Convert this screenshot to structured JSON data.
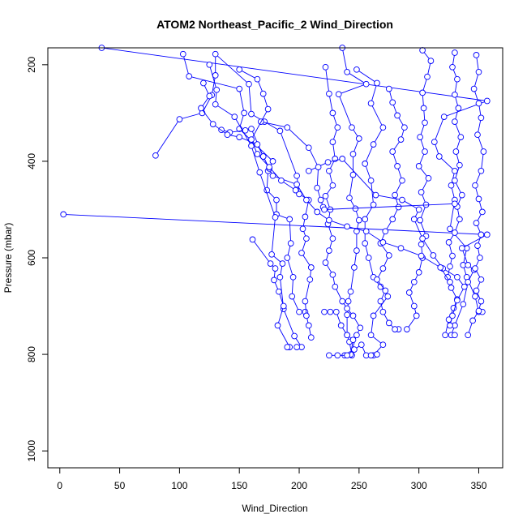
{
  "chart_data": {
    "type": "line",
    "title": "ATOM2 Northeast_Pacific_2 Wind_Direction",
    "xlabel": "Wind_Direction",
    "ylabel": "Pressure (mbar)",
    "xlim": [
      -10,
      370
    ],
    "ylim": [
      1035,
      165
    ],
    "y_reversed": true,
    "xticks": [
      0,
      50,
      100,
      150,
      200,
      250,
      300,
      350
    ],
    "yticks": [
      200,
      400,
      600,
      800,
      1000
    ],
    "xtick_labels": [
      "0",
      "50",
      "100",
      "150",
      "200",
      "250",
      "300",
      "350"
    ],
    "ytick_labels": [
      "200",
      "400",
      "600",
      "800",
      "1000"
    ],
    "grid": false,
    "legend": "none",
    "line_color": "#0000ff",
    "marker": "open-circle",
    "series": [
      {
        "points": [
          [
            35,
            165
          ],
          [
            357,
            275
          ],
          [
            321,
            308
          ],
          [
            313,
            360
          ],
          [
            317,
            390
          ],
          [
            330,
            420
          ],
          [
            327,
            450
          ],
          [
            330,
            480
          ],
          [
            326,
            540
          ],
          [
            340,
            580
          ],
          [
            337,
            615
          ],
          [
            340,
            640
          ],
          [
            347,
            680
          ],
          [
            350,
            712
          ],
          [
            353,
            712
          ]
        ]
      },
      {
        "points": [
          [
            103,
            178
          ],
          [
            108,
            224
          ],
          [
            150,
            250
          ],
          [
            154,
            300
          ],
          [
            150,
            333
          ],
          [
            178,
            400
          ],
          [
            174,
            420
          ],
          [
            173,
            460
          ],
          [
            181,
            480
          ],
          [
            181,
            510
          ],
          [
            192,
            520
          ],
          [
            193,
            570
          ],
          [
            190,
            600
          ],
          [
            195,
            640
          ],
          [
            194,
            680
          ],
          [
            200,
            712
          ],
          [
            205,
            712
          ]
        ]
      },
      {
        "points": [
          [
            125,
            200
          ],
          [
            131,
            252
          ],
          [
            130,
            282
          ],
          [
            146,
            308
          ],
          [
            160,
            368
          ],
          [
            167,
            423
          ],
          [
            180,
            516
          ],
          [
            177,
            593
          ],
          [
            186,
            612
          ],
          [
            184,
            640
          ],
          [
            187,
            706
          ],
          [
            196,
            762
          ],
          [
            202,
            785
          ],
          [
            198,
            785
          ]
        ]
      },
      {
        "points": [
          [
            3,
            510
          ],
          [
            357,
            552
          ],
          [
            336,
            580
          ],
          [
            341,
            615
          ],
          [
            346,
            625
          ],
          [
            341,
            650
          ],
          [
            337,
            696
          ],
          [
            330,
            740
          ],
          [
            327,
            760
          ],
          [
            330,
            760
          ]
        ]
      },
      {
        "points": [
          [
            161,
            562
          ],
          [
            176,
            612
          ],
          [
            180,
            622
          ],
          [
            179,
            646
          ],
          [
            183,
            670
          ],
          [
            187,
            700
          ],
          [
            182,
            740
          ],
          [
            192,
            785
          ],
          [
            190,
            785
          ]
        ]
      },
      {
        "points": [
          [
            236,
            165
          ],
          [
            240,
            215
          ],
          [
            256,
            240
          ],
          [
            233,
            261
          ],
          [
            244,
            330
          ],
          [
            250,
            353
          ],
          [
            245,
            385
          ],
          [
            245,
            428
          ],
          [
            242,
            476
          ],
          [
            247,
            498
          ],
          [
            250,
            522
          ],
          [
            248,
            545
          ],
          [
            248,
            585
          ],
          [
            246,
            620
          ],
          [
            243,
            670
          ],
          [
            241,
            690
          ],
          [
            240,
            718
          ],
          [
            240,
            760
          ],
          [
            242,
            774
          ],
          [
            244,
            802
          ],
          [
            238,
            802
          ]
        ]
      },
      {
        "points": [
          [
            80,
            388
          ],
          [
            100,
            313
          ],
          [
            119,
            300
          ],
          [
            127,
            263
          ],
          [
            130,
            222
          ],
          [
            130,
            178
          ],
          [
            158,
            240
          ],
          [
            160,
            302
          ],
          [
            171,
            318
          ],
          [
            184,
            337
          ],
          [
            198,
            430
          ],
          [
            200,
            468
          ],
          [
            208,
            480
          ],
          [
            205,
            515
          ],
          [
            203,
            540
          ],
          [
            206,
            560
          ],
          [
            202,
            590
          ],
          [
            210,
            620
          ],
          [
            209,
            645
          ],
          [
            205,
            690
          ],
          [
            206,
            720
          ],
          [
            208,
            740
          ],
          [
            210,
            765
          ]
        ]
      },
      {
        "points": [
          [
            262,
            802
          ],
          [
            270,
            780
          ],
          [
            260,
            760
          ],
          [
            262,
            720
          ],
          [
            274,
            680
          ],
          [
            268,
            660
          ],
          [
            262,
            640
          ],
          [
            258,
            600
          ],
          [
            255,
            570
          ],
          [
            255,
            520
          ],
          [
            262,
            490
          ],
          [
            260,
            440
          ],
          [
            255,
            405
          ],
          [
            262,
            365
          ],
          [
            270,
            330
          ],
          [
            260,
            280
          ],
          [
            265,
            238
          ],
          [
            248,
            210
          ]
        ]
      },
      {
        "points": [
          [
            290,
            748
          ],
          [
            298,
            720
          ],
          [
            296,
            700
          ],
          [
            292,
            672
          ],
          [
            296,
            650
          ],
          [
            300,
            630
          ],
          [
            303,
            600
          ],
          [
            302,
            572
          ],
          [
            306,
            555
          ],
          [
            301,
            522
          ],
          [
            306,
            490
          ],
          [
            302,
            464
          ],
          [
            308,
            435
          ],
          [
            300,
            410
          ],
          [
            305,
            380
          ],
          [
            301,
            350
          ],
          [
            305,
            320
          ],
          [
            304,
            290
          ],
          [
            303,
            258
          ],
          [
            307,
            225
          ],
          [
            310,
            192
          ],
          [
            303,
            170
          ]
        ]
      },
      {
        "points": [
          [
            322,
            760
          ],
          [
            325,
            728
          ],
          [
            329,
            704
          ],
          [
            332,
            686
          ],
          [
            327,
            662
          ],
          [
            324,
            640
          ],
          [
            326,
            618
          ],
          [
            328,
            596
          ],
          [
            325,
            568
          ],
          [
            330,
            548
          ],
          [
            334,
            520
          ],
          [
            332,
            494
          ],
          [
            336,
            470
          ],
          [
            330,
            440
          ],
          [
            334,
            408
          ],
          [
            331,
            380
          ],
          [
            335,
            350
          ],
          [
            330,
            318
          ],
          [
            333,
            290
          ],
          [
            330,
            262
          ],
          [
            332,
            230
          ],
          [
            328,
            205
          ],
          [
            330,
            175
          ]
        ]
      },
      {
        "points": [
          [
            341,
            760
          ],
          [
            345,
            730
          ],
          [
            350,
            710
          ],
          [
            352,
            690
          ],
          [
            348,
            668
          ],
          [
            352,
            645
          ],
          [
            347,
            622
          ],
          [
            351,
            600
          ],
          [
            349,
            575
          ],
          [
            352,
            552
          ],
          [
            348,
            528
          ],
          [
            353,
            505
          ],
          [
            350,
            478
          ],
          [
            347,
            450
          ],
          [
            352,
            420
          ],
          [
            354,
            380
          ],
          [
            349,
            345
          ],
          [
            352,
            310
          ],
          [
            350,
            280
          ],
          [
            346,
            250
          ],
          [
            350,
            215
          ],
          [
            348,
            180
          ]
        ]
      },
      {
        "points": [
          [
            221,
            712
          ],
          [
            226,
            712
          ],
          [
            231,
            712
          ],
          [
            235,
            740
          ],
          [
            240,
            760
          ],
          [
            245,
            770
          ],
          [
            243,
            800
          ],
          [
            248,
            760
          ],
          [
            251,
            745
          ],
          [
            245,
            720
          ],
          [
            240,
            705
          ],
          [
            236,
            690
          ],
          [
            230,
            660
          ],
          [
            228,
            635
          ],
          [
            222,
            610
          ],
          [
            225,
            585
          ],
          [
            228,
            560
          ],
          [
            224,
            530
          ],
          [
            226,
            500
          ],
          [
            222,
            472
          ],
          [
            228,
            450
          ],
          [
            225,
            420
          ],
          [
            230,
            395
          ],
          [
            228,
            360
          ],
          [
            232,
            330
          ],
          [
            228,
            300
          ],
          [
            225,
            260
          ],
          [
            222,
            205
          ]
        ]
      },
      {
        "points": [
          [
            283,
            748
          ],
          [
            280,
            748
          ],
          [
            275,
            735
          ],
          [
            270,
            712
          ],
          [
            268,
            690
          ],
          [
            272,
            668
          ],
          [
            265,
            645
          ],
          [
            270,
            622
          ],
          [
            275,
            595
          ],
          [
            268,
            570
          ],
          [
            272,
            545
          ],
          [
            278,
            520
          ],
          [
            283,
            495
          ],
          [
            280,
            470
          ],
          [
            286,
            440
          ],
          [
            282,
            410
          ],
          [
            278,
            380
          ],
          [
            285,
            355
          ],
          [
            288,
            330
          ],
          [
            282,
            305
          ],
          [
            278,
            278
          ],
          [
            275,
            250
          ]
        ]
      },
      {
        "points": [
          [
            225,
            802
          ],
          [
            232,
            802
          ],
          [
            240,
            802
          ],
          [
            246,
            790
          ],
          [
            252,
            780
          ],
          [
            256,
            802
          ],
          [
            260,
            802
          ],
          [
            265,
            800
          ]
        ]
      },
      {
        "points": [
          [
            208,
            420
          ],
          [
            224,
            402
          ],
          [
            236,
            395
          ],
          [
            264,
            470
          ],
          [
            286,
            480
          ],
          [
            300,
            500
          ],
          [
            296,
            520
          ],
          [
            303,
            560
          ],
          [
            312,
            595
          ],
          [
            320,
            622
          ],
          [
            332,
            640
          ],
          [
            338,
            660
          ],
          [
            332,
            688
          ],
          [
            328,
            720
          ],
          [
            326,
            740
          ]
        ]
      },
      {
        "points": [
          [
            135,
            335
          ],
          [
            142,
            340
          ],
          [
            155,
            336
          ],
          [
            160,
            333
          ],
          [
            170,
            390
          ],
          [
            178,
            430
          ],
          [
            198,
            448
          ],
          [
            206,
            480
          ],
          [
            215,
            505
          ],
          [
            225,
            522
          ],
          [
            240,
            535
          ],
          [
            256,
            545
          ],
          [
            270,
            568
          ],
          [
            285,
            580
          ],
          [
            302,
            596
          ],
          [
            318,
            620
          ],
          [
            326,
            650
          ]
        ]
      },
      {
        "points": [
          [
            168,
            318
          ],
          [
            190,
            330
          ],
          [
            208,
            372
          ],
          [
            216,
            412
          ],
          [
            215,
            455
          ],
          [
            218,
            480
          ],
          [
            220,
            495
          ],
          [
            221,
            500
          ],
          [
            330,
            488
          ]
        ]
      },
      {
        "points": [
          [
            120,
            238
          ],
          [
            125,
            265
          ],
          [
            118,
            290
          ],
          [
            128,
            323
          ],
          [
            140,
            345
          ],
          [
            150,
            350
          ],
          [
            165,
            365
          ],
          [
            170,
            390
          ],
          [
            175,
            415
          ]
        ]
      },
      {
        "points": [
          [
            150,
            210
          ],
          [
            165,
            230
          ],
          [
            170,
            260
          ],
          [
            174,
            292
          ],
          [
            160,
            355
          ],
          [
            165,
            385
          ],
          [
            175,
            412
          ],
          [
            185,
            440
          ],
          [
            197,
            460
          ]
        ]
      }
    ]
  }
}
